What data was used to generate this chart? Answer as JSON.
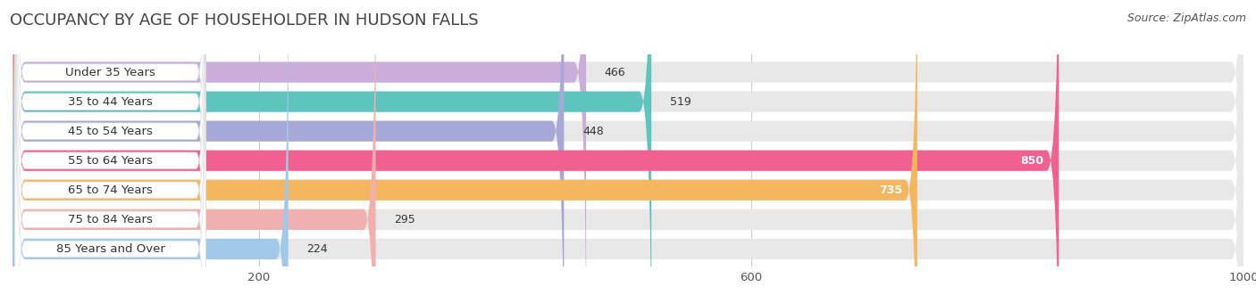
{
  "title": "OCCUPANCY BY AGE OF HOUSEHOLDER IN HUDSON FALLS",
  "source": "Source: ZipAtlas.com",
  "categories": [
    "Under 35 Years",
    "35 to 44 Years",
    "45 to 54 Years",
    "55 to 64 Years",
    "65 to 74 Years",
    "75 to 84 Years",
    "85 Years and Over"
  ],
  "values": [
    466,
    519,
    448,
    850,
    735,
    295,
    224
  ],
  "bar_colors": [
    "#c9aed9",
    "#5dc4be",
    "#a8a8d8",
    "#f06090",
    "#f5b660",
    "#f0b0b0",
    "#a0c8e8"
  ],
  "bar_bg_color": "#e8e8e8",
  "label_pill_color": "#ffffff",
  "xlim": [
    0,
    1000
  ],
  "xticks": [
    200,
    600,
    1000
  ],
  "title_fontsize": 13,
  "label_fontsize": 9.5,
  "value_fontsize": 9,
  "source_fontsize": 9,
  "bar_height": 0.7,
  "bg_color": "#ffffff",
  "text_color": "#333333",
  "label_color": "#555555",
  "grid_color": "#cccccc"
}
